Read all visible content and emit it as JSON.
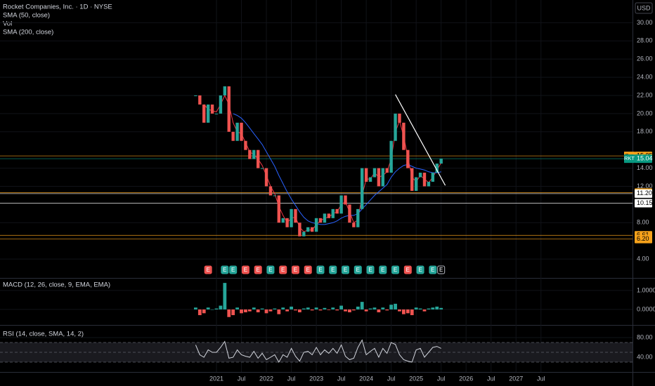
{
  "chart_data": [
    {
      "type": "candlestick",
      "title": "Rocket Companies, Inc. · 1D · NYSE",
      "volume_title": "Vol",
      "currency": "USD",
      "x": [
        "2020-08",
        "2020-09",
        "2020-10",
        "2020-11",
        "2020-12",
        "2021-01",
        "2021-02",
        "2021-03",
        "2021-04",
        "2021-05",
        "2021-06",
        "2021-07",
        "2021-08",
        "2021-09",
        "2021-10",
        "2021-11",
        "2021-12",
        "2022-01",
        "2022-02",
        "2022-03",
        "2022-04",
        "2022-05",
        "2022-06",
        "2022-07",
        "2022-08",
        "2022-09",
        "2022-10",
        "2022-11",
        "2022-12",
        "2023-01",
        "2023-02",
        "2023-03",
        "2023-04",
        "2023-05",
        "2023-06",
        "2023-07",
        "2023-08",
        "2023-09",
        "2023-10",
        "2023-11",
        "2023-12",
        "2024-01",
        "2024-02",
        "2024-03",
        "2024-04",
        "2024-05",
        "2024-06",
        "2024-07",
        "2024-08",
        "2024-09",
        "2024-10",
        "2024-11",
        "2024-12",
        "2025-01",
        "2025-02",
        "2025-03",
        "2025-04",
        "2025-05",
        "2025-06",
        "2025-07"
      ],
      "values": [
        22,
        21,
        19,
        21,
        20,
        20,
        22,
        23,
        18,
        17,
        19,
        17,
        16,
        15,
        16,
        14,
        14,
        12,
        11,
        11,
        8,
        8.5,
        7.5,
        9.5,
        8,
        6.5,
        7,
        7.5,
        7,
        8.5,
        8,
        9,
        8.5,
        9.5,
        9,
        11,
        10,
        8,
        7.5,
        9.5,
        14,
        12.5,
        13,
        14,
        12,
        14,
        13.5,
        17,
        20,
        19,
        16,
        14,
        11.5,
        13,
        13.5,
        12,
        12.5,
        13.5,
        14.5,
        15.04
      ],
      "up_color": "#26a69a",
      "down_color": "#ef5350",
      "series": [
        {
          "name": "SMA (50, close)",
          "color": "#f23645",
          "values": [
            null,
            null,
            21,
            20.5,
            20.3,
            20.2,
            21,
            22,
            21,
            19,
            18,
            17.8,
            16.8,
            15.8,
            15.5,
            15,
            14.3,
            13.2,
            12,
            11.2,
            9.8,
            8.8,
            8,
            8.5,
            8.6,
            7.5,
            7,
            7.2,
            7.2,
            7.8,
            8.2,
            8.5,
            8.6,
            9,
            9.2,
            10,
            10.3,
            9.2,
            8,
            8.3,
            11,
            12.8,
            12.8,
            13.5,
            13,
            13.2,
            13.6,
            15,
            18,
            19.2,
            17.5,
            15.2,
            13,
            12.5,
            13.2,
            12.8,
            12.4,
            13,
            13.8,
            14.6
          ]
        },
        {
          "name": "SMA (200, close)",
          "color": "#2962ff",
          "values": [
            null,
            null,
            null,
            null,
            null,
            null,
            null,
            null,
            null,
            20,
            19.8,
            19.5,
            19,
            18.4,
            17.8,
            17.2,
            16.6,
            15.8,
            15,
            14.2,
            13.2,
            12.3,
            11.4,
            10.6,
            9.9,
            9.2,
            8.6,
            8.2,
            8,
            7.9,
            7.8,
            7.8,
            7.9,
            8,
            8.2,
            8.5,
            8.7,
            8.8,
            8.8,
            9,
            9.5,
            10,
            10.5,
            11,
            11.4,
            11.8,
            12.2,
            13,
            13.6,
            14,
            14.3,
            14.4,
            14.2,
            14,
            13.9,
            13.8,
            13.6,
            13.5,
            13.5,
            13.6
          ]
        }
      ],
      "ylim": [
        2,
        32.5
      ],
      "yticks": [
        {
          "value": 4,
          "label": "4.00"
        },
        {
          "value": 8,
          "label": "8.00"
        },
        {
          "value": 12,
          "label": "12.00"
        },
        {
          "value": 14,
          "label": "14.00"
        },
        {
          "value": 18,
          "label": "18.00"
        },
        {
          "value": 20,
          "label": "20.00"
        },
        {
          "value": 22,
          "label": "22.00"
        },
        {
          "value": 24,
          "label": "24.00"
        },
        {
          "value": 26,
          "label": "26.00"
        },
        {
          "value": 28,
          "label": "28.00"
        },
        {
          "value": 30,
          "label": "30.00"
        }
      ],
      "xticks": [
        {
          "value": "2021-01",
          "label": "2021"
        },
        {
          "value": "2021-07",
          "label": "Jul"
        },
        {
          "value": "2022-01",
          "label": "2022"
        },
        {
          "value": "2022-07",
          "label": "Jul"
        },
        {
          "value": "2023-01",
          "label": "2023"
        },
        {
          "value": "2023-07",
          "label": "Jul"
        },
        {
          "value": "2024-01",
          "label": "2024"
        },
        {
          "value": "2024-07",
          "label": "Jul"
        },
        {
          "value": "2025-01",
          "label": "2025"
        },
        {
          "value": "2025-07",
          "label": "Jul"
        },
        {
          "value": "2026-01",
          "label": "2026"
        },
        {
          "value": "2026-07",
          "label": "Jul"
        },
        {
          "value": "2027-01",
          "label": "2027"
        },
        {
          "value": "2027-07",
          "label": "Jul"
        }
      ],
      "price_labels": [
        {
          "value": 15.35,
          "label": "15.35",
          "tag": "Pre",
          "color": "#f7a21b"
        },
        {
          "value": 15.04,
          "label": "15.04",
          "tag": "RKT",
          "color": "#089981"
        },
        {
          "value": 11.31,
          "label": "11.31",
          "color": "#f7a21b"
        },
        {
          "value": 11.2,
          "label": "11.20",
          "color": "#ffffff"
        },
        {
          "value": 10.15,
          "label": "10.15",
          "color": "#ffffff"
        },
        {
          "value": 6.61,
          "label": "6.61",
          "color": "#f7a21b"
        },
        {
          "value": 6.2,
          "label": "6.20",
          "color": "#f7a21b"
        }
      ],
      "trendline": {
        "x": [
          "2024-08",
          "2025-08"
        ],
        "values": [
          22.1,
          12.1
        ],
        "color": "#ffffff"
      },
      "earnings": {
        "label": "E",
        "x": [
          "2020-11",
          "2021-03",
          "2021-05",
          "2021-08",
          "2021-11",
          "2022-02",
          "2022-05",
          "2022-08",
          "2022-11",
          "2023-02",
          "2023-05",
          "2023-08",
          "2023-11",
          "2024-02",
          "2024-05",
          "2024-08",
          "2024-11",
          "2025-02",
          "2025-05",
          "2025-07"
        ],
        "colors": [
          "#ef5350",
          "#26a69a",
          "#26a69a",
          "#ef5350",
          "#ef5350",
          "#26a69a",
          "#ef5350",
          "#ef5350",
          "#ef5350",
          "#26a69a",
          "#26a69a",
          "#26a69a",
          "#26a69a",
          "#26a69a",
          "#26a69a",
          "#26a69a",
          "#ef5350",
          "#26a69a",
          "#26a69a",
          "#b2b5be"
        ]
      }
    },
    {
      "type": "histogram",
      "title": "MACD (12, 26, close, 9, EMA, EMA)",
      "values": [
        0.1,
        -0.3,
        -0.2,
        0.1,
        0,
        0.05,
        0.2,
        1.4,
        -0.4,
        -0.3,
        0.1,
        -0.2,
        -0.15,
        -0.1,
        0.1,
        -0.15,
        0.05,
        -0.2,
        -0.1,
        0.05,
        -0.25,
        0.1,
        -0.1,
        0.15,
        -0.05,
        -0.15,
        0.05,
        0.1,
        -0.05,
        0.1,
        -0.05,
        0.08,
        -0.03,
        0.1,
        -0.05,
        0.2,
        -0.1,
        -0.15,
        -0.05,
        0.15,
        0.4,
        -0.1,
        0.05,
        0.1,
        -0.15,
        0.1,
        -0.05,
        0.25,
        0.3,
        -0.1,
        -0.25,
        -0.2,
        -0.3,
        0.1,
        0.05,
        -0.1,
        0.05,
        0.1,
        0.15,
        0.08
      ],
      "up_color": "#26a69a",
      "down_color": "#ef5350",
      "ylim": [
        -0.78,
        1.59
      ],
      "yticks": [
        {
          "value": 0,
          "label": "0.0000"
        },
        {
          "value": 1,
          "label": "1.0000"
        }
      ]
    },
    {
      "type": "line",
      "title": "RSI (14, close, SMA, 14, 2)",
      "color": "#d1d4dc",
      "values": [
        65,
        45,
        40,
        55,
        50,
        50,
        60,
        72,
        38,
        40,
        55,
        45,
        42,
        40,
        52,
        38,
        48,
        35,
        40,
        45,
        30,
        45,
        40,
        58,
        42,
        32,
        50,
        52,
        45,
        60,
        45,
        55,
        48,
        58,
        48,
        65,
        42,
        35,
        38,
        60,
        75,
        45,
        52,
        58,
        40,
        58,
        48,
        70,
        66,
        45,
        35,
        32,
        30,
        55,
        58,
        40,
        50,
        60,
        62,
        58
      ],
      "band": [
        30,
        70
      ],
      "levels": [
        30,
        50,
        70
      ],
      "ylim": [
        12.9,
        101.4
      ],
      "yticks": [
        {
          "value": 40,
          "label": "40.00"
        },
        {
          "value": 80,
          "label": "80.00"
        }
      ]
    }
  ]
}
